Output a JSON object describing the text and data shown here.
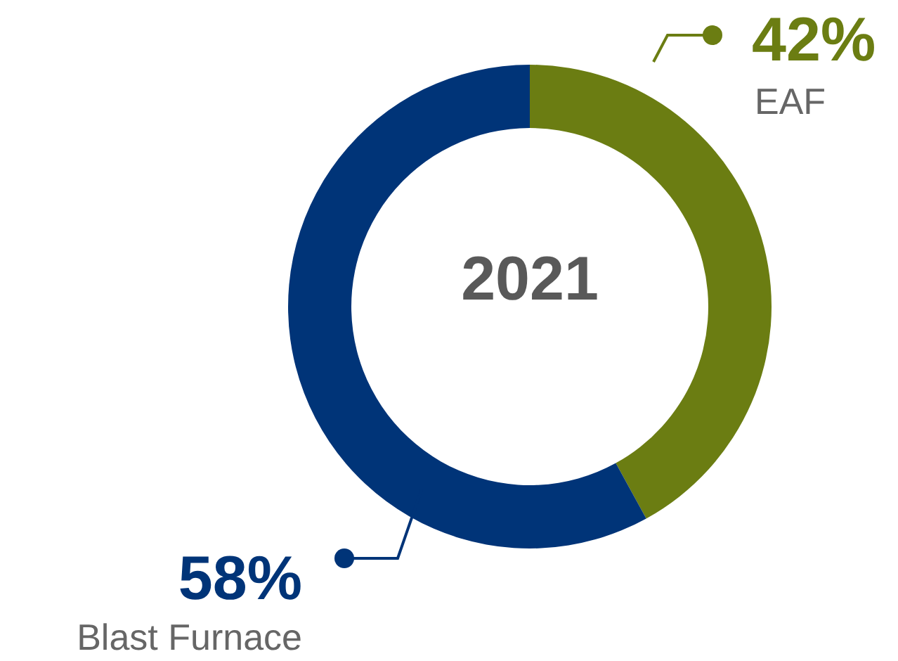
{
  "chart_data": {
    "type": "donut",
    "title": "2021",
    "categories": [
      "EAF",
      "Blast Furnace"
    ],
    "values": [
      42,
      58
    ],
    "colors": [
      "#6b7d12",
      "#003478"
    ],
    "value_labels": [
      "42%",
      "58%"
    ]
  }
}
